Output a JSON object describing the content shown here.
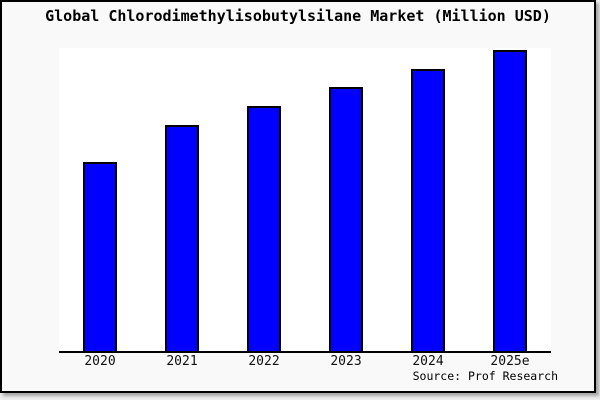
{
  "figure": {
    "background": "#f9f9f9",
    "plot_background": "#ffffff",
    "border_color": "#000000"
  },
  "chart_data": {
    "type": "bar",
    "title": "Global Chlorodimethylisobutylsilane Market (Million USD)",
    "categories": [
      "2020",
      "2021",
      "2022",
      "2023",
      "2024",
      "2025e"
    ],
    "values": [
      62.8,
      75.2,
      81.4,
      87.9,
      93.7,
      100
    ],
    "value_scale": "relative index, 2025e = 100 (no y-axis scale shown in image)",
    "xlabel": "",
    "ylabel": "",
    "ylim": [
      0,
      100.7
    ],
    "grid": false,
    "legend": false,
    "y_axis_visible": false,
    "bar_color": "#0000ff",
    "bar_edge_color": "#000000",
    "source": "Source: Prof Research"
  }
}
